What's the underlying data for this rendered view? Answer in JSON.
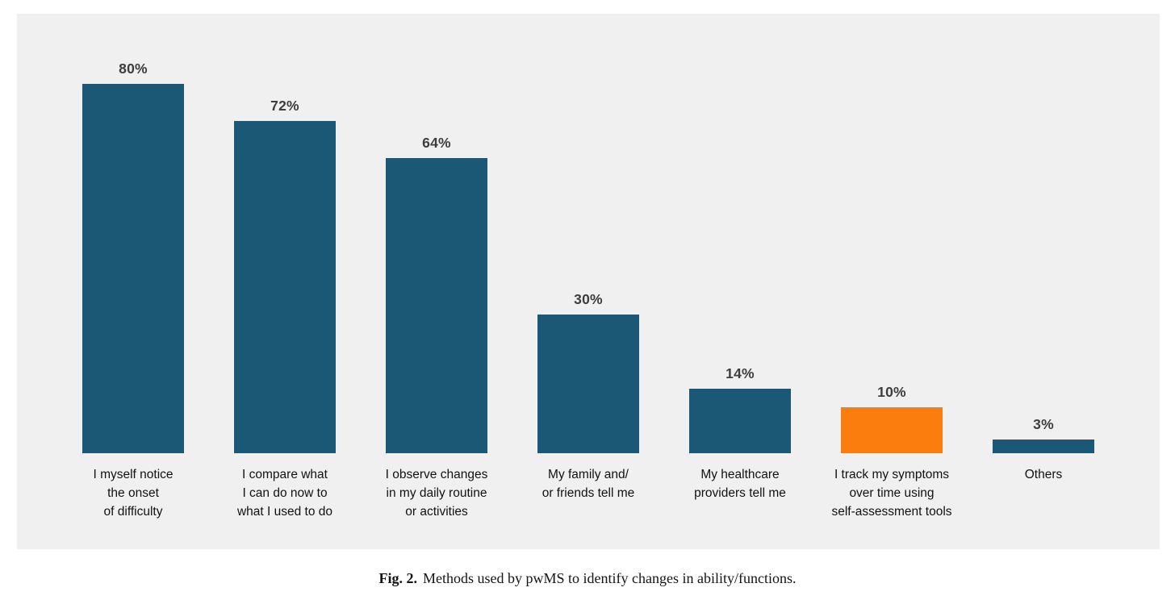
{
  "figure": {
    "caption_label": "Fig. 2.",
    "caption_text": "Methods used by pwMS to identify changes in ability/functions."
  },
  "chart_data": {
    "type": "bar",
    "title": "Methods used by pwMS to identify changes in ability/functions",
    "xlabel": "",
    "ylabel": "",
    "ylim": [
      0,
      100
    ],
    "grid": false,
    "legend": "none",
    "value_unit": "%",
    "categories": [
      "I myself notice the onset of difficulty",
      "I compare what I can do now to what I used to do",
      "I observe changes in my daily routine or activities",
      "My family and/or friends tell me",
      "My healthcare providers tell me",
      "I track my symptoms over time using self-assessment tools",
      "Others"
    ],
    "category_lines": [
      [
        "I myself notice",
        "the onset",
        "of difficulty"
      ],
      [
        "I compare what",
        "I can do now to",
        "what I used to do"
      ],
      [
        "I observe changes",
        "in my daily routine",
        "or activities"
      ],
      [
        "My family and/",
        "or friends tell me"
      ],
      [
        "My healthcare",
        "providers tell me"
      ],
      [
        "I track my symptoms",
        "over time using",
        "self-assessment tools"
      ],
      [
        "Others"
      ]
    ],
    "values": [
      80,
      72,
      64,
      30,
      14,
      10,
      3
    ],
    "value_labels": [
      "80%",
      "72%",
      "64%",
      "30%",
      "14%",
      "10%",
      "3%"
    ],
    "bar_colors": [
      "teal",
      "teal",
      "teal",
      "teal",
      "teal",
      "orange",
      "teal"
    ],
    "colors": {
      "teal": "#1b5875",
      "orange": "#fa7d0d",
      "panel_background": "#f0f0f1",
      "value_label_text": "#3d3d3d",
      "category_label_text": "#111111"
    }
  }
}
